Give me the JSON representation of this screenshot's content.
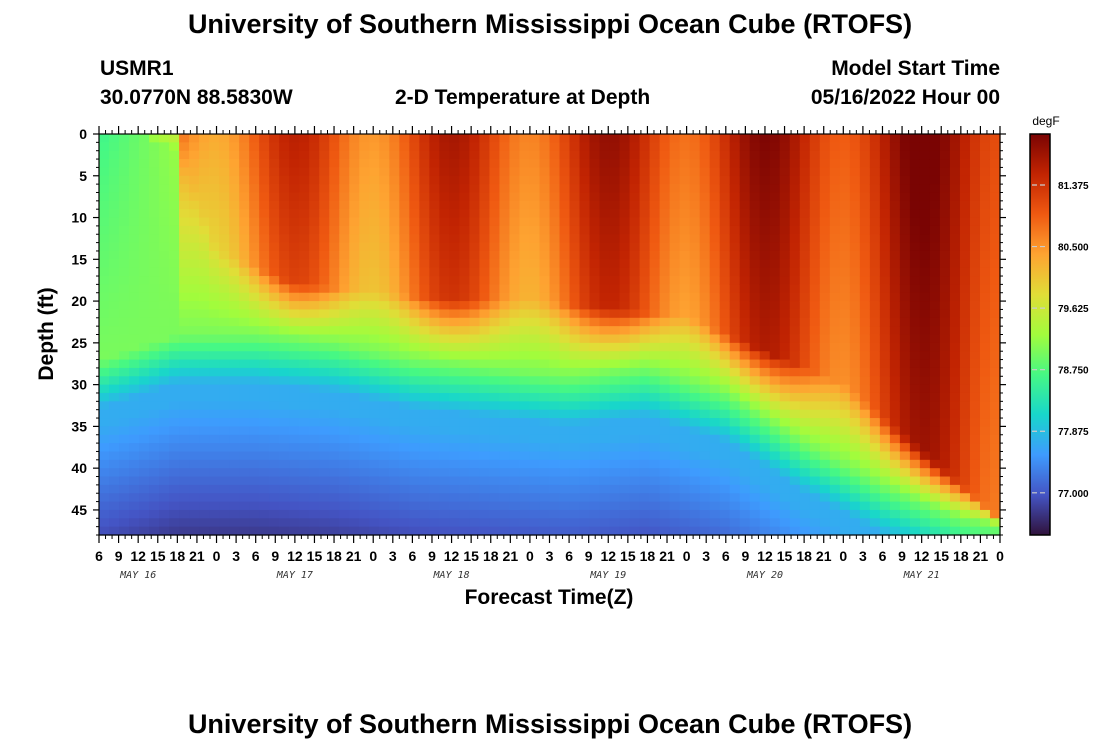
{
  "header": {
    "title": "University of Southern Mississippi Ocean Cube (RTOFS)",
    "station_id": "USMR1",
    "coordinates": "30.0770N  88.5830W",
    "plot_title": "2-D Temperature at Depth",
    "start_label": "Model Start Time",
    "start_value": "05/16/2022 Hour 00",
    "footer_title": "University of Southern Mississippi Ocean Cube (RTOFS)"
  },
  "chart_data": {
    "type": "heatmap",
    "title": "2-D Temperature at Depth",
    "xlabel": "Forecast Time(Z)",
    "ylabel": "Depth (ft)",
    "x_unit": "hours since 05/16/2022 Hour 00",
    "x_range": [
      6,
      144
    ],
    "y_range": [
      0,
      48
    ],
    "y_ticks": [
      0,
      5,
      10,
      15,
      20,
      25,
      30,
      35,
      40,
      45
    ],
    "x_tick_labels": [
      "6",
      "9",
      "12",
      "15",
      "18",
      "21",
      "0",
      "3",
      "6",
      "9",
      "12",
      "15",
      "18",
      "21",
      "0",
      "3",
      "6",
      "9",
      "12",
      "15",
      "18",
      "21",
      "0",
      "3",
      "6",
      "9",
      "12",
      "15",
      "18",
      "21",
      "0",
      "3",
      "6",
      "9",
      "12",
      "15",
      "18",
      "21",
      "0",
      "3",
      "6",
      "9",
      "12",
      "15",
      "18",
      "21",
      "0"
    ],
    "date_labels": [
      {
        "label": "MAY 16",
        "hour": 12
      },
      {
        "label": "MAY 17",
        "hour": 36
      },
      {
        "label": "MAY 18",
        "hour": 60
      },
      {
        "label": "MAY 19",
        "hour": 84
      },
      {
        "label": "MAY 20",
        "hour": 108
      },
      {
        "label": "MAY 21",
        "hour": 132
      }
    ],
    "colorbar": {
      "unit": "degF",
      "min": 76.4,
      "max": 82.1,
      "ticks": [
        77.0,
        77.875,
        78.75,
        79.625,
        80.5,
        81.375
      ],
      "tick_labels": [
        "77.000",
        "77.875",
        "78.750",
        "79.625",
        "80.500",
        "81.375"
      ],
      "colormap": [
        "#30123b",
        "#4454c4",
        "#3e9bfe",
        "#18d6cb",
        "#46f884",
        "#a2fc3c",
        "#e1dd37",
        "#fea331",
        "#ef5911",
        "#c22402",
        "#7a0403"
      ]
    },
    "thermocline_depth_ft": [
      {
        "hour": 6,
        "depth": 27
      },
      {
        "hour": 18,
        "depth": 24
      },
      {
        "hour": 30,
        "depth": 24
      },
      {
        "hour": 42,
        "depth": 25
      },
      {
        "hour": 54,
        "depth": 27
      },
      {
        "hour": 66,
        "depth": 28
      },
      {
        "hour": 78,
        "depth": 29
      },
      {
        "hour": 90,
        "depth": 28
      },
      {
        "hour": 102,
        "depth": 31
      },
      {
        "hour": 114,
        "depth": 37
      },
      {
        "hour": 126,
        "depth": 42
      },
      {
        "hour": 138,
        "depth": 46
      },
      {
        "hour": 144,
        "depth": 47
      }
    ],
    "warm_layer_depth_ft": [
      {
        "hour": 6,
        "depth": 0
      },
      {
        "hour": 12,
        "depth": 0
      },
      {
        "hour": 18,
        "depth": 2
      },
      {
        "hour": 24,
        "depth": 14
      },
      {
        "hour": 36,
        "depth": 18
      },
      {
        "hour": 48,
        "depth": 19
      },
      {
        "hour": 60,
        "depth": 20
      },
      {
        "hour": 72,
        "depth": 20
      },
      {
        "hour": 84,
        "depth": 21
      },
      {
        "hour": 96,
        "depth": 22
      },
      {
        "hour": 108,
        "depth": 26
      },
      {
        "hour": 120,
        "depth": 30
      },
      {
        "hour": 132,
        "depth": 38
      },
      {
        "hour": 144,
        "depth": 46
      }
    ]
  }
}
